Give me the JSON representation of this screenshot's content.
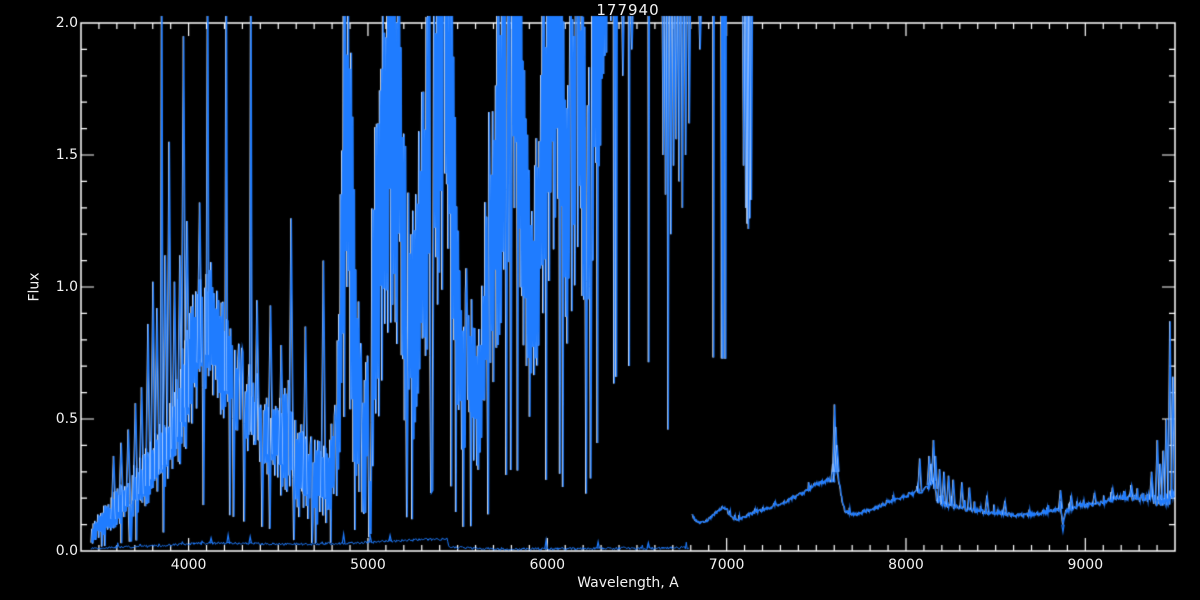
{
  "window": {
    "background": "#000000"
  },
  "chart_data": {
    "type": "line",
    "title": "177940",
    "xlabel": "Wavelength, A",
    "ylabel": "Flux",
    "xlim": [
      3400,
      9500
    ],
    "ylim": [
      0.0,
      2.0
    ],
    "x_major_ticks": [
      4000,
      5000,
      6000,
      7000,
      8000,
      9000
    ],
    "x_tick_labels": [
      "4000",
      "5000",
      "6000",
      "7000",
      "8000",
      "9000"
    ],
    "x_minor_interval": 100,
    "y_major_ticks": [
      0.0,
      0.5,
      1.0,
      1.5,
      2.0
    ],
    "y_tick_labels": [
      "0.0",
      "0.5",
      "1.0",
      "1.5",
      "2.0"
    ],
    "y_minor_interval": 0.1,
    "grid": false,
    "legend": false,
    "line_color": "#1f7cff",
    "glint_color": "#ffffff",
    "axis_color": "#ffffff",
    "background_color": "#000000",
    "series": {
      "blue_arm_envelope": [
        [
          3455,
          0.02,
          0.08
        ],
        [
          3480,
          0.04,
          0.13
        ],
        [
          3520,
          0.06,
          0.17
        ],
        [
          3560,
          0.07,
          0.2
        ],
        [
          3600,
          0.09,
          0.24
        ],
        [
          3650,
          0.11,
          0.29
        ],
        [
          3700,
          0.13,
          0.33
        ],
        [
          3750,
          0.16,
          0.38
        ],
        [
          3800,
          0.2,
          0.44
        ],
        [
          3850,
          0.23,
          0.5
        ],
        [
          3900,
          0.26,
          0.58
        ],
        [
          3950,
          0.31,
          0.72
        ],
        [
          3990,
          0.4,
          0.88
        ],
        [
          4030,
          0.5,
          1.0
        ],
        [
          4070,
          0.58,
          1.1
        ],
        [
          4110,
          0.58,
          1.13
        ],
        [
          4150,
          0.54,
          1.04
        ],
        [
          4190,
          0.5,
          0.95
        ],
        [
          4230,
          0.45,
          0.86
        ],
        [
          4270,
          0.41,
          0.77
        ],
        [
          4310,
          0.37,
          0.7
        ],
        [
          4350,
          0.34,
          0.66
        ],
        [
          4400,
          0.31,
          0.62
        ],
        [
          4450,
          0.28,
          0.58
        ],
        [
          4500,
          0.22,
          0.62
        ],
        [
          4540,
          0.16,
          0.66
        ],
        [
          4580,
          0.14,
          0.6
        ],
        [
          4620,
          0.12,
          0.5
        ],
        [
          4660,
          0.11,
          0.44
        ],
        [
          4700,
          0.1,
          0.42
        ],
        [
          4740,
          0.1,
          0.44
        ],
        [
          4780,
          0.1,
          0.46
        ],
        [
          4820,
          0.12,
          0.55
        ],
        [
          4840,
          0.22,
          1.3
        ],
        [
          4862,
          0.45,
          2.35
        ],
        [
          4890,
          0.5,
          2.4
        ],
        [
          4915,
          0.35,
          1.9
        ],
        [
          4945,
          0.1,
          0.85
        ],
        [
          4970,
          0.08,
          0.55
        ],
        [
          5000,
          0.15,
          0.95
        ],
        [
          5030,
          0.3,
          1.55
        ],
        [
          5060,
          0.5,
          2.05
        ],
        [
          5090,
          0.7,
          2.35
        ],
        [
          5130,
          0.85,
          2.5
        ],
        [
          5170,
          0.75,
          2.4
        ],
        [
          5205,
          0.45,
          1.6
        ],
        [
          5235,
          0.38,
          1.25
        ],
        [
          5265,
          0.45,
          1.55
        ],
        [
          5300,
          0.55,
          1.85
        ],
        [
          5340,
          0.7,
          2.15
        ],
        [
          5380,
          0.85,
          2.4
        ],
        [
          5420,
          0.95,
          2.55
        ],
        [
          5460,
          0.85,
          2.4
        ],
        [
          5495,
          0.4,
          1.35
        ],
        [
          5525,
          0.3,
          0.95
        ],
        [
          5555,
          0.33,
          1.06
        ],
        [
          5585,
          0.3,
          0.96
        ],
        [
          5615,
          0.26,
          0.82
        ],
        [
          5645,
          0.34,
          1.25
        ],
        [
          5685,
          0.55,
          1.75
        ],
        [
          5725,
          0.75,
          2.15
        ],
        [
          5765,
          0.95,
          2.5
        ],
        [
          5805,
          1.05,
          2.6
        ],
        [
          5845,
          1.0,
          2.5
        ],
        [
          5875,
          0.6,
          1.85
        ],
        [
          5905,
          0.42,
          1.25
        ],
        [
          5935,
          0.52,
          1.65
        ],
        [
          5965,
          0.72,
          2.05
        ],
        [
          5995,
          0.92,
          2.45
        ],
        [
          6025,
          1.05,
          2.62
        ],
        [
          6055,
          1.1,
          2.62
        ],
        [
          6085,
          0.8,
          2.25
        ],
        [
          6115,
          0.62,
          1.75
        ],
        [
          6145,
          0.92,
          2.35
        ],
        [
          6165,
          1.1,
          2.62
        ],
        [
          6190,
          0.92,
          2.25
        ],
        [
          6215,
          0.72,
          1.95
        ],
        [
          6240,
          0.92,
          2.25
        ],
        [
          6270,
          1.3,
          2.72
        ],
        [
          6305,
          1.6,
          3.0
        ],
        [
          6345,
          1.95,
          3.3
        ],
        [
          6390,
          2.25,
          3.5
        ],
        [
          6500,
          2.4,
          3.6
        ],
        [
          6700,
          2.35,
          3.55
        ],
        [
          6900,
          2.45,
          3.6
        ],
        [
          7090,
          2.4,
          3.55
        ],
        [
          7162,
          2.2,
          3.4
        ]
      ],
      "blue_arm_spikes": [
        [
          3580,
          0.36
        ],
        [
          3622,
          0.41
        ],
        [
          3662,
          0.46
        ],
        [
          3702,
          0.56
        ],
        [
          3736,
          0.62
        ],
        [
          3772,
          0.86
        ],
        [
          3800,
          1.02
        ],
        [
          3822,
          0.92
        ],
        [
          3848,
          2.3
        ],
        [
          3868,
          1.12
        ],
        [
          3890,
          1.55
        ],
        [
          3920,
          1.02
        ],
        [
          3950,
          1.12
        ],
        [
          3970,
          1.95
        ],
        [
          3990,
          1.25
        ],
        [
          4060,
          1.32
        ],
        [
          4104,
          2.3
        ],
        [
          4208,
          2.3
        ],
        [
          4345,
          2.3
        ],
        [
          4380,
          0.95
        ],
        [
          4455,
          0.93
        ],
        [
          4515,
          0.78
        ],
        [
          4570,
          1.26
        ],
        [
          4650,
          0.85
        ],
        [
          4750,
          1.1
        ]
      ],
      "blue_arm_absorption_dips": [
        [
          6420,
          1.8
        ],
        [
          6470,
          1.9
        ],
        [
          6645,
          1.5
        ],
        [
          6658,
          1.35
        ],
        [
          6672,
          0.46
        ],
        [
          6688,
          1.2
        ],
        [
          6703,
          1.46
        ],
        [
          6718,
          1.56
        ],
        [
          6734,
          1.4
        ],
        [
          6752,
          1.3
        ],
        [
          6770,
          1.5
        ],
        [
          6790,
          1.62
        ],
        [
          6850,
          1.9
        ],
        [
          7093,
          1.46
        ],
        [
          7105,
          1.3
        ],
        [
          7113,
          1.24
        ],
        [
          7120,
          1.22
        ],
        [
          7128,
          1.26
        ],
        [
          7136,
          1.33
        ]
      ],
      "error_trace": [
        [
          3455,
          0.01
        ],
        [
          3600,
          0.014
        ],
        [
          3800,
          0.018
        ],
        [
          4000,
          0.027
        ],
        [
          4150,
          0.03
        ],
        [
          4300,
          0.029
        ],
        [
          4450,
          0.027
        ],
        [
          4600,
          0.025
        ],
        [
          4750,
          0.027
        ],
        [
          4900,
          0.03
        ],
        [
          5050,
          0.034
        ],
        [
          5200,
          0.04
        ],
        [
          5330,
          0.043
        ],
        [
          5440,
          0.047
        ],
        [
          5452,
          0.015
        ],
        [
          5600,
          0.01
        ],
        [
          5800,
          0.008
        ],
        [
          6000,
          0.008
        ],
        [
          6200,
          0.009
        ],
        [
          6400,
          0.01
        ],
        [
          6600,
          0.011
        ],
        [
          6790,
          0.013
        ]
      ],
      "error_spikes": [
        [
          4122,
          0.05
        ],
        [
          4217,
          0.062
        ],
        [
          4340,
          0.055
        ],
        [
          4861,
          0.065
        ],
        [
          5010,
          0.055
        ],
        [
          5120,
          0.06
        ],
        [
          5990,
          0.042
        ],
        [
          6280,
          0.035
        ],
        [
          6560,
          0.032
        ]
      ],
      "red_arm": [
        [
          6806,
          0.135
        ],
        [
          6825,
          0.115
        ],
        [
          6855,
          0.105
        ],
        [
          6885,
          0.115
        ],
        [
          6915,
          0.13
        ],
        [
          6945,
          0.15
        ],
        [
          6975,
          0.165
        ],
        [
          7000,
          0.155
        ],
        [
          7015,
          0.135
        ],
        [
          7045,
          0.12
        ],
        [
          7075,
          0.12
        ],
        [
          7110,
          0.135
        ],
        [
          7150,
          0.145
        ],
        [
          7200,
          0.155
        ],
        [
          7260,
          0.17
        ],
        [
          7320,
          0.185
        ],
        [
          7380,
          0.205
        ],
        [
          7440,
          0.225
        ],
        [
          7490,
          0.25
        ],
        [
          7530,
          0.26
        ],
        [
          7570,
          0.27
        ],
        [
          7590,
          0.26
        ],
        [
          7600,
          0.3
        ],
        [
          7615,
          0.3
        ],
        [
          7630,
          0.24
        ],
        [
          7645,
          0.175
        ],
        [
          7660,
          0.15
        ],
        [
          7690,
          0.14
        ],
        [
          7730,
          0.14
        ],
        [
          7770,
          0.15
        ],
        [
          7820,
          0.16
        ],
        [
          7870,
          0.175
        ],
        [
          7920,
          0.19
        ],
        [
          7970,
          0.2
        ],
        [
          8020,
          0.215
        ],
        [
          8070,
          0.225
        ],
        [
          8110,
          0.235
        ],
        [
          8140,
          0.26
        ],
        [
          8158,
          0.27
        ],
        [
          8168,
          0.2
        ],
        [
          8185,
          0.185
        ],
        [
          8220,
          0.175
        ],
        [
          8260,
          0.17
        ],
        [
          8310,
          0.165
        ],
        [
          8360,
          0.155
        ],
        [
          8420,
          0.15
        ],
        [
          8480,
          0.145
        ],
        [
          8540,
          0.14
        ],
        [
          8600,
          0.135
        ],
        [
          8660,
          0.135
        ],
        [
          8720,
          0.14
        ],
        [
          8780,
          0.15
        ],
        [
          8830,
          0.155
        ],
        [
          8860,
          0.16
        ],
        [
          8872,
          0.1
        ],
        [
          8885,
          0.145
        ],
        [
          8920,
          0.16
        ],
        [
          8970,
          0.17
        ],
        [
          9020,
          0.175
        ],
        [
          9070,
          0.18
        ],
        [
          9120,
          0.19
        ],
        [
          9170,
          0.2
        ],
        [
          9220,
          0.205
        ],
        [
          9270,
          0.205
        ],
        [
          9320,
          0.2
        ],
        [
          9370,
          0.195
        ],
        [
          9420,
          0.195
        ],
        [
          9460,
          0.2
        ],
        [
          9496,
          0.21
        ]
      ],
      "red_arm_noise": [
        [
          6806,
          0.005
        ],
        [
          7200,
          0.006
        ],
        [
          7550,
          0.009
        ],
        [
          7650,
          0.007
        ],
        [
          8000,
          0.008
        ],
        [
          8130,
          0.012
        ],
        [
          8200,
          0.012
        ],
        [
          8400,
          0.01
        ],
        [
          8700,
          0.008
        ],
        [
          9000,
          0.009
        ],
        [
          9200,
          0.011
        ],
        [
          9330,
          0.02
        ],
        [
          9430,
          0.026
        ],
        [
          9496,
          0.03
        ]
      ],
      "red_arm_spikes": [
        [
          7590,
          0.33
        ],
        [
          7600,
          0.555
        ],
        [
          7607,
          0.47
        ],
        [
          7614,
          0.4
        ],
        [
          8075,
          0.35
        ],
        [
          8128,
          0.36
        ],
        [
          8140,
          0.33
        ],
        [
          8152,
          0.42
        ],
        [
          8163,
          0.36
        ],
        [
          8186,
          0.31
        ],
        [
          8210,
          0.3
        ],
        [
          8236,
          0.285
        ],
        [
          8262,
          0.27
        ],
        [
          8310,
          0.26
        ],
        [
          8352,
          0.24
        ],
        [
          8450,
          0.21
        ],
        [
          8550,
          0.19
        ],
        [
          8860,
          0.23
        ],
        [
          8920,
          0.21
        ],
        [
          9050,
          0.22
        ],
        [
          9150,
          0.24
        ],
        [
          9255,
          0.25
        ],
        [
          9368,
          0.3
        ],
        [
          9400,
          0.42
        ],
        [
          9416,
          0.33
        ],
        [
          9433,
          0.38
        ],
        [
          9450,
          0.5
        ],
        [
          9470,
          0.87
        ],
        [
          9487,
          0.66
        ]
      ],
      "red_arm_dips": [
        [
          8872,
          0.072
        ]
      ]
    }
  }
}
